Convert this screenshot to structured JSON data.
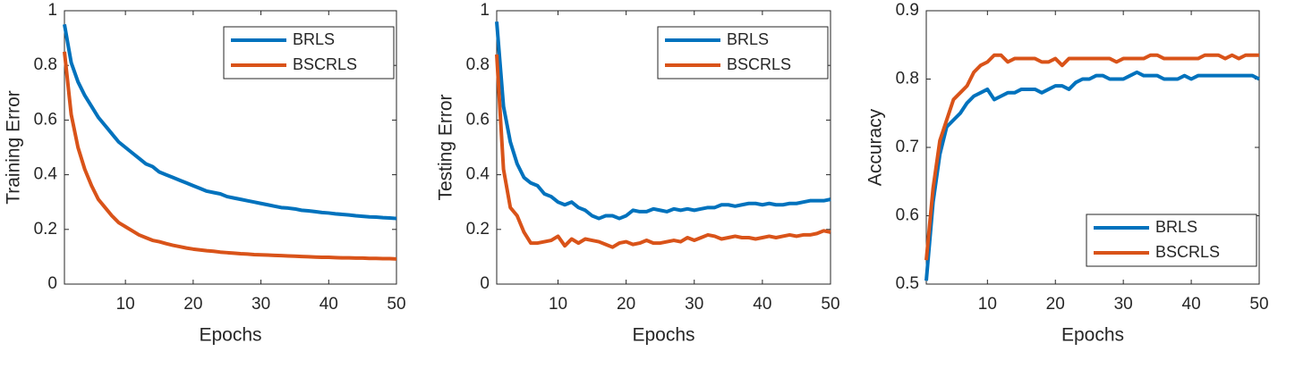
{
  "chart_data": [
    {
      "type": "line",
      "xlabel": "Epochs",
      "ylabel": "Training Error",
      "x": [
        1,
        2,
        3,
        4,
        5,
        6,
        7,
        8,
        9,
        10,
        11,
        12,
        13,
        14,
        15,
        16,
        17,
        18,
        19,
        20,
        21,
        22,
        23,
        24,
        25,
        26,
        27,
        28,
        29,
        30,
        31,
        32,
        33,
        34,
        35,
        36,
        37,
        38,
        39,
        40,
        41,
        42,
        43,
        44,
        45,
        46,
        47,
        48,
        49,
        50
      ],
      "xlim": [
        1,
        50
      ],
      "xticks": [
        10,
        20,
        30,
        40,
        50
      ],
      "ylim": [
        0,
        1
      ],
      "yticks": [
        0,
        0.2,
        0.4,
        0.6,
        0.8,
        1
      ],
      "legend": "upper right",
      "series": [
        {
          "name": "BRLS",
          "color": "#0072BD",
          "values": [
            0.95,
            0.81,
            0.74,
            0.69,
            0.65,
            0.61,
            0.58,
            0.55,
            0.52,
            0.5,
            0.48,
            0.46,
            0.44,
            0.43,
            0.41,
            0.4,
            0.39,
            0.38,
            0.37,
            0.36,
            0.35,
            0.34,
            0.335,
            0.33,
            0.32,
            0.315,
            0.31,
            0.305,
            0.3,
            0.295,
            0.29,
            0.285,
            0.28,
            0.278,
            0.275,
            0.27,
            0.268,
            0.265,
            0.262,
            0.26,
            0.257,
            0.255,
            0.253,
            0.25,
            0.248,
            0.246,
            0.245,
            0.243,
            0.242,
            0.24
          ]
        },
        {
          "name": "BSCRLS",
          "color": "#D95319",
          "values": [
            0.85,
            0.62,
            0.5,
            0.42,
            0.36,
            0.31,
            0.28,
            0.25,
            0.225,
            0.21,
            0.195,
            0.18,
            0.17,
            0.16,
            0.155,
            0.148,
            0.142,
            0.137,
            0.132,
            0.128,
            0.125,
            0.122,
            0.12,
            0.117,
            0.115,
            0.113,
            0.111,
            0.11,
            0.108,
            0.107,
            0.106,
            0.105,
            0.104,
            0.103,
            0.102,
            0.101,
            0.1,
            0.099,
            0.098,
            0.098,
            0.097,
            0.096,
            0.096,
            0.095,
            0.095,
            0.094,
            0.094,
            0.093,
            0.093,
            0.092
          ]
        }
      ]
    },
    {
      "type": "line",
      "xlabel": "Epochs",
      "ylabel": "Testing Error",
      "x": [
        1,
        2,
        3,
        4,
        5,
        6,
        7,
        8,
        9,
        10,
        11,
        12,
        13,
        14,
        15,
        16,
        17,
        18,
        19,
        20,
        21,
        22,
        23,
        24,
        25,
        26,
        27,
        28,
        29,
        30,
        31,
        32,
        33,
        34,
        35,
        36,
        37,
        38,
        39,
        40,
        41,
        42,
        43,
        44,
        45,
        46,
        47,
        48,
        49,
        50
      ],
      "xlim": [
        1,
        50
      ],
      "xticks": [
        10,
        20,
        30,
        40,
        50
      ],
      "ylim": [
        0,
        1
      ],
      "yticks": [
        0,
        0.2,
        0.4,
        0.6,
        0.8,
        1
      ],
      "legend": "upper right",
      "series": [
        {
          "name": "BRLS",
          "color": "#0072BD",
          "values": [
            0.96,
            0.65,
            0.52,
            0.44,
            0.39,
            0.37,
            0.36,
            0.33,
            0.32,
            0.3,
            0.29,
            0.3,
            0.28,
            0.27,
            0.25,
            0.24,
            0.25,
            0.25,
            0.24,
            0.25,
            0.27,
            0.265,
            0.265,
            0.275,
            0.27,
            0.265,
            0.275,
            0.27,
            0.275,
            0.27,
            0.275,
            0.28,
            0.28,
            0.29,
            0.29,
            0.285,
            0.29,
            0.295,
            0.295,
            0.29,
            0.295,
            0.29,
            0.29,
            0.295,
            0.295,
            0.3,
            0.305,
            0.305,
            0.305,
            0.31
          ]
        },
        {
          "name": "BSCRLS",
          "color": "#D95319",
          "values": [
            0.84,
            0.42,
            0.28,
            0.25,
            0.19,
            0.15,
            0.15,
            0.155,
            0.16,
            0.175,
            0.14,
            0.165,
            0.15,
            0.165,
            0.16,
            0.155,
            0.145,
            0.135,
            0.15,
            0.155,
            0.145,
            0.15,
            0.16,
            0.15,
            0.15,
            0.155,
            0.16,
            0.155,
            0.17,
            0.16,
            0.17,
            0.18,
            0.175,
            0.165,
            0.17,
            0.175,
            0.17,
            0.17,
            0.165,
            0.17,
            0.175,
            0.17,
            0.175,
            0.18,
            0.175,
            0.18,
            0.18,
            0.185,
            0.195,
            0.19
          ]
        }
      ]
    },
    {
      "type": "line",
      "xlabel": "Epochs",
      "ylabel": "Accuracy",
      "x": [
        1,
        2,
        3,
        4,
        5,
        6,
        7,
        8,
        9,
        10,
        11,
        12,
        13,
        14,
        15,
        16,
        17,
        18,
        19,
        20,
        21,
        22,
        23,
        24,
        25,
        26,
        27,
        28,
        29,
        30,
        31,
        32,
        33,
        34,
        35,
        36,
        37,
        38,
        39,
        40,
        41,
        42,
        43,
        44,
        45,
        46,
        47,
        48,
        49,
        50
      ],
      "xlim": [
        1,
        50
      ],
      "xticks": [
        10,
        20,
        30,
        40,
        50
      ],
      "ylim": [
        0.5,
        0.9
      ],
      "yticks": [
        0.5,
        0.6,
        0.7,
        0.8,
        0.9
      ],
      "legend": "lower right",
      "series": [
        {
          "name": "BRLS",
          "color": "#0072BD",
          "values": [
            0.505,
            0.62,
            0.69,
            0.73,
            0.74,
            0.75,
            0.765,
            0.775,
            0.78,
            0.785,
            0.77,
            0.775,
            0.78,
            0.78,
            0.785,
            0.785,
            0.785,
            0.78,
            0.785,
            0.79,
            0.79,
            0.785,
            0.795,
            0.8,
            0.8,
            0.805,
            0.805,
            0.8,
            0.8,
            0.8,
            0.805,
            0.81,
            0.805,
            0.805,
            0.805,
            0.8,
            0.8,
            0.8,
            0.805,
            0.8,
            0.805,
            0.805,
            0.805,
            0.805,
            0.805,
            0.805,
            0.805,
            0.805,
            0.805,
            0.8
          ]
        },
        {
          "name": "BSCRLS",
          "color": "#D95319",
          "values": [
            0.535,
            0.64,
            0.71,
            0.74,
            0.77,
            0.78,
            0.79,
            0.81,
            0.82,
            0.825,
            0.835,
            0.835,
            0.825,
            0.83,
            0.83,
            0.83,
            0.83,
            0.825,
            0.825,
            0.83,
            0.82,
            0.83,
            0.83,
            0.83,
            0.83,
            0.83,
            0.83,
            0.83,
            0.825,
            0.83,
            0.83,
            0.83,
            0.83,
            0.835,
            0.835,
            0.83,
            0.83,
            0.83,
            0.83,
            0.83,
            0.83,
            0.835,
            0.835,
            0.835,
            0.83,
            0.835,
            0.83,
            0.835,
            0.835,
            0.835
          ]
        }
      ]
    }
  ]
}
